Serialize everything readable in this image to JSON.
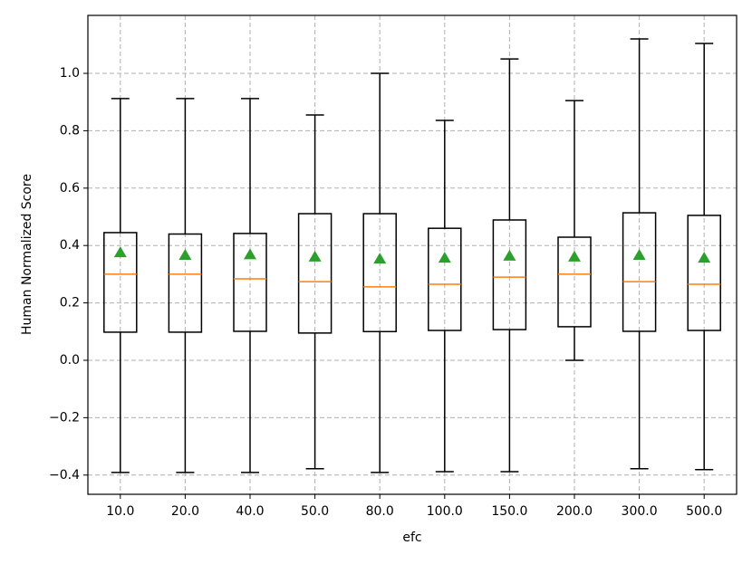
{
  "chart_data": {
    "type": "box",
    "xlabel": "efc",
    "ylabel": "Human Normalized Score",
    "categories": [
      "10.0",
      "20.0",
      "40.0",
      "50.0",
      "80.0",
      "100.0",
      "150.0",
      "200.0",
      "300.0",
      "500.0"
    ],
    "whislo": [
      -0.391,
      -0.391,
      -0.391,
      -0.378,
      -0.391,
      -0.388,
      -0.388,
      0.0,
      -0.378,
      -0.381
    ],
    "q1": [
      0.098,
      0.098,
      0.101,
      0.095,
      0.1,
      0.104,
      0.107,
      0.117,
      0.101,
      0.104
    ],
    "med": [
      0.3,
      0.3,
      0.284,
      0.274,
      0.256,
      0.265,
      0.29,
      0.3,
      0.274,
      0.265
    ],
    "q3": [
      0.445,
      0.44,
      0.442,
      0.511,
      0.511,
      0.46,
      0.489,
      0.429,
      0.514,
      0.505
    ],
    "whishi": [
      0.912,
      0.912,
      0.912,
      0.855,
      1.0,
      0.836,
      1.05,
      0.905,
      1.12,
      1.104
    ],
    "mean": [
      0.375,
      0.366,
      0.368,
      0.36,
      0.353,
      0.356,
      0.363,
      0.36,
      0.366,
      0.356
    ],
    "box_color": "#000000",
    "median_color": "#ff7f0e",
    "mean_color": "#2ca02c",
    "ylim": [
      -0.467,
      1.202
    ],
    "yticks": [
      {
        "value": -0.4,
        "label": "−0.4"
      },
      {
        "value": -0.2,
        "label": "−0.2"
      },
      {
        "value": 0.0,
        "label": "0.0"
      },
      {
        "value": 0.2,
        "label": "0.2"
      },
      {
        "value": 0.4,
        "label": "0.4"
      },
      {
        "value": 0.6,
        "label": "0.6"
      },
      {
        "value": 0.8,
        "label": "0.8"
      },
      {
        "value": 1.0,
        "label": "1.0"
      }
    ],
    "grid": true
  }
}
